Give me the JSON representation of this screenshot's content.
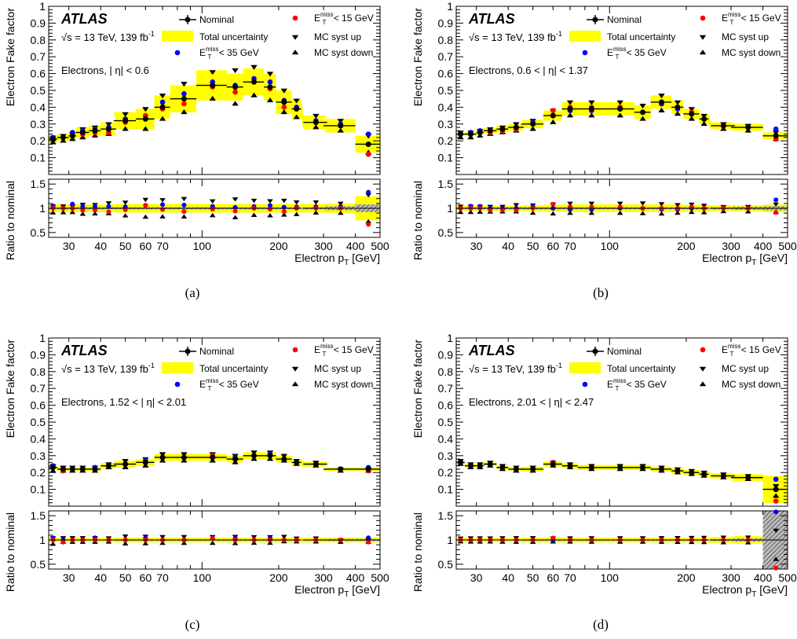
{
  "figure": {
    "captions": [
      "(a)",
      "(b)",
      "(c)",
      "(d)"
    ]
  },
  "common": {
    "experiment": "ATLAS",
    "energy_label": "√s = 13 TeV, 139 fb",
    "lumi_sup": "-1",
    "ylabel_top": "Electron Fake factor",
    "ylabel_bottom": "Ratio to nominal",
    "xlabel": "Electron p",
    "xlabel_sub": "T",
    "xlabel_unit": " [GeV]",
    "legend": [
      {
        "key": "nominal",
        "label": "Nominal"
      },
      {
        "key": "total_unc",
        "label": "Total uncertainty"
      },
      {
        "key": "met35",
        "label_main": "E",
        "label_sup": "miss",
        "label_sub": "T",
        "label_rest": " < 35 GeV"
      },
      {
        "key": "met15",
        "label_main": "E",
        "label_sup": "miss",
        "label_sub": "T",
        "label_rest": " < 15 GeV"
      },
      {
        "key": "syst_up",
        "label": "MC syst up"
      },
      {
        "key": "syst_down",
        "label": "MC syst down"
      }
    ],
    "colors": {
      "band": "#ffff00",
      "met15": "#ff0000",
      "met35": "#0000ff",
      "nominal": "#000000",
      "stat_hatch": "#555555"
    }
  },
  "chart_data": [
    {
      "type": "scatter",
      "panel": "(a)",
      "region": "Electrons, | η| < 0.6",
      "xscale": "log",
      "xlim": [
        25,
        500
      ],
      "ylim_top": [
        0,
        1
      ],
      "ylim_ratio": [
        0.4,
        1.6
      ],
      "xticks": [
        30,
        40,
        50,
        60,
        70,
        100,
        200,
        300,
        400,
        500
      ],
      "yticks_top": [
        0.1,
        0.2,
        0.3,
        0.4,
        0.5,
        0.6,
        0.7,
        0.8,
        0.9,
        1
      ],
      "yticks_ratio": [
        0.5,
        1,
        1.5
      ],
      "x": [
        26,
        28.5,
        31,
        34,
        38,
        43,
        50,
        60,
        70,
        85,
        110,
        135,
        160,
        185,
        210,
        235,
        280,
        350,
        450
      ],
      "xerr": [
        1,
        1.5,
        1,
        2,
        2,
        3,
        5,
        5,
        5,
        10,
        15,
        10,
        15,
        10,
        15,
        10,
        30,
        50,
        50
      ],
      "nominal": [
        0.21,
        0.22,
        0.23,
        0.25,
        0.26,
        0.27,
        0.32,
        0.33,
        0.4,
        0.45,
        0.53,
        0.52,
        0.55,
        0.52,
        0.43,
        0.39,
        0.31,
        0.29,
        0.18
      ],
      "band_halfwidth": [
        0.02,
        0.02,
        0.025,
        0.03,
        0.03,
        0.04,
        0.05,
        0.06,
        0.07,
        0.08,
        0.09,
        0.08,
        0.08,
        0.08,
        0.07,
        0.06,
        0.04,
        0.04,
        0.05
      ],
      "met15": [
        0.21,
        0.22,
        0.23,
        0.24,
        0.25,
        0.25,
        0.31,
        0.35,
        0.39,
        0.42,
        0.52,
        0.49,
        0.55,
        0.51,
        0.4,
        0.39,
        0.31,
        0.29,
        0.12
      ],
      "met35": [
        0.22,
        0.22,
        0.25,
        0.26,
        0.27,
        0.28,
        0.33,
        0.35,
        0.43,
        0.48,
        0.55,
        0.53,
        0.57,
        0.55,
        0.44,
        0.4,
        0.32,
        0.3,
        0.24
      ],
      "syst_up": [
        0.22,
        0.23,
        0.24,
        0.27,
        0.28,
        0.3,
        0.36,
        0.39,
        0.47,
        0.54,
        0.61,
        0.62,
        0.64,
        0.6,
        0.5,
        0.44,
        0.35,
        0.32,
        0.23
      ],
      "syst_down": [
        0.19,
        0.2,
        0.21,
        0.22,
        0.23,
        0.24,
        0.27,
        0.27,
        0.33,
        0.37,
        0.45,
        0.42,
        0.47,
        0.44,
        0.37,
        0.34,
        0.28,
        0.26,
        0.13
      ],
      "ratio_band_halfwidth": [
        0.08,
        0.08,
        0.08,
        0.08,
        0.08,
        0.08,
        0.09,
        0.09,
        0.09,
        0.09,
        0.09,
        0.09,
        0.09,
        0.09,
        0.09,
        0.09,
        0.09,
        0.1,
        0.25
      ],
      "ratio_hatch_halfwidth": [
        0.02,
        0.02,
        0.02,
        0.02,
        0.02,
        0.02,
        0.02,
        0.02,
        0.02,
        0.02,
        0.02,
        0.02,
        0.02,
        0.02,
        0.02,
        0.02,
        0.02,
        0.04,
        0.08
      ]
    },
    {
      "type": "scatter",
      "panel": "(b)",
      "region": "Electrons, 0.6 < | η| < 1.37",
      "xscale": "log",
      "xlim": [
        25,
        500
      ],
      "ylim_top": [
        0,
        1
      ],
      "ylim_ratio": [
        0.4,
        1.6
      ],
      "xticks": [
        30,
        40,
        50,
        60,
        70,
        100,
        200,
        300,
        400,
        500
      ],
      "yticks_top": [
        0.1,
        0.2,
        0.3,
        0.4,
        0.5,
        0.6,
        0.7,
        0.8,
        0.9,
        1
      ],
      "yticks_ratio": [
        0.5,
        1,
        1.5
      ],
      "x": [
        26,
        28.5,
        31,
        34,
        38,
        43,
        50,
        60,
        70,
        85,
        110,
        135,
        160,
        185,
        210,
        235,
        280,
        350,
        450
      ],
      "xerr": [
        1,
        1.5,
        1,
        2,
        2,
        3,
        5,
        5,
        5,
        10,
        15,
        10,
        15,
        10,
        15,
        10,
        30,
        50,
        50
      ],
      "nominal": [
        0.24,
        0.24,
        0.25,
        0.26,
        0.27,
        0.28,
        0.3,
        0.35,
        0.39,
        0.39,
        0.39,
        0.37,
        0.43,
        0.4,
        0.36,
        0.33,
        0.29,
        0.28,
        0.23
      ],
      "band_halfwidth": [
        0.01,
        0.01,
        0.015,
        0.015,
        0.02,
        0.02,
        0.025,
        0.03,
        0.04,
        0.04,
        0.04,
        0.04,
        0.04,
        0.04,
        0.03,
        0.03,
        0.02,
        0.02,
        0.02
      ],
      "met15": [
        0.24,
        0.24,
        0.25,
        0.25,
        0.26,
        0.27,
        0.3,
        0.38,
        0.4,
        0.4,
        0.4,
        0.37,
        0.43,
        0.4,
        0.37,
        0.33,
        0.29,
        0.28,
        0.21
      ],
      "met35": [
        0.24,
        0.25,
        0.26,
        0.26,
        0.27,
        0.28,
        0.31,
        0.35,
        0.38,
        0.38,
        0.39,
        0.37,
        0.42,
        0.39,
        0.36,
        0.33,
        0.29,
        0.28,
        0.27
      ],
      "syst_up": [
        0.25,
        0.25,
        0.26,
        0.27,
        0.28,
        0.3,
        0.32,
        0.38,
        0.43,
        0.43,
        0.43,
        0.41,
        0.47,
        0.43,
        0.39,
        0.35,
        0.3,
        0.29,
        0.25
      ],
      "syst_down": [
        0.22,
        0.22,
        0.23,
        0.24,
        0.25,
        0.26,
        0.27,
        0.31,
        0.35,
        0.35,
        0.35,
        0.33,
        0.38,
        0.36,
        0.33,
        0.3,
        0.27,
        0.26,
        0.21
      ],
      "ratio_band_halfwidth": [
        0.05,
        0.05,
        0.05,
        0.05,
        0.05,
        0.05,
        0.06,
        0.07,
        0.08,
        0.08,
        0.08,
        0.08,
        0.08,
        0.08,
        0.07,
        0.07,
        0.06,
        0.06,
        0.08
      ],
      "ratio_hatch_halfwidth": [
        0.02,
        0.02,
        0.02,
        0.02,
        0.02,
        0.02,
        0.02,
        0.02,
        0.02,
        0.02,
        0.02,
        0.02,
        0.02,
        0.02,
        0.02,
        0.02,
        0.02,
        0.03,
        0.04
      ]
    },
    {
      "type": "scatter",
      "panel": "(c)",
      "region": "Electrons, 1.52 < | η| < 2.01",
      "xscale": "log",
      "xlim": [
        25,
        500
      ],
      "ylim_top": [
        0,
        1
      ],
      "ylim_ratio": [
        0.4,
        1.6
      ],
      "xticks": [
        30,
        40,
        50,
        60,
        70,
        100,
        200,
        300,
        400,
        500
      ],
      "yticks_top": [
        0.1,
        0.2,
        0.3,
        0.4,
        0.5,
        0.6,
        0.7,
        0.8,
        0.9,
        1
      ],
      "yticks_ratio": [
        0.5,
        1,
        1.5
      ],
      "x": [
        26,
        28.5,
        31,
        34,
        38,
        43,
        50,
        60,
        70,
        85,
        110,
        135,
        160,
        185,
        210,
        235,
        280,
        350,
        450
      ],
      "xerr": [
        1,
        1.5,
        1,
        2,
        2,
        3,
        5,
        5,
        5,
        10,
        15,
        10,
        15,
        10,
        15,
        10,
        30,
        50,
        50
      ],
      "nominal": [
        0.23,
        0.22,
        0.22,
        0.22,
        0.22,
        0.24,
        0.25,
        0.26,
        0.29,
        0.29,
        0.29,
        0.28,
        0.3,
        0.3,
        0.28,
        0.26,
        0.25,
        0.22,
        0.22
      ],
      "band_halfwidth": [
        0.01,
        0.01,
        0.01,
        0.01,
        0.01,
        0.015,
        0.02,
        0.02,
        0.02,
        0.02,
        0.02,
        0.02,
        0.02,
        0.02,
        0.02,
        0.02,
        0.015,
        0.01,
        0.01
      ],
      "met15": [
        0.23,
        0.21,
        0.22,
        0.22,
        0.22,
        0.24,
        0.25,
        0.26,
        0.29,
        0.29,
        0.3,
        0.28,
        0.3,
        0.3,
        0.28,
        0.26,
        0.25,
        0.22,
        0.21
      ],
      "met35": [
        0.24,
        0.22,
        0.22,
        0.22,
        0.23,
        0.24,
        0.25,
        0.27,
        0.29,
        0.29,
        0.3,
        0.29,
        0.3,
        0.31,
        0.28,
        0.26,
        0.25,
        0.22,
        0.23
      ],
      "syst_up": [
        0.24,
        0.23,
        0.23,
        0.23,
        0.23,
        0.25,
        0.27,
        0.28,
        0.31,
        0.31,
        0.31,
        0.3,
        0.32,
        0.32,
        0.3,
        0.27,
        0.26,
        0.22,
        0.22
      ],
      "syst_down": [
        0.21,
        0.21,
        0.21,
        0.21,
        0.21,
        0.23,
        0.23,
        0.24,
        0.27,
        0.27,
        0.27,
        0.26,
        0.28,
        0.28,
        0.27,
        0.25,
        0.24,
        0.21,
        0.21
      ],
      "ratio_band_halfwidth": [
        0.04,
        0.04,
        0.04,
        0.04,
        0.04,
        0.04,
        0.05,
        0.05,
        0.05,
        0.05,
        0.05,
        0.05,
        0.05,
        0.05,
        0.05,
        0.05,
        0.05,
        0.05,
        0.05
      ],
      "ratio_hatch_halfwidth": [
        0.01,
        0.01,
        0.01,
        0.01,
        0.01,
        0.01,
        0.015,
        0.015,
        0.015,
        0.015,
        0.015,
        0.015,
        0.015,
        0.015,
        0.015,
        0.015,
        0.015,
        0.02,
        0.02
      ]
    },
    {
      "type": "scatter",
      "panel": "(d)",
      "region": "Electrons, 2.01 < | η| < 2.47",
      "xscale": "log",
      "xlim": [
        25,
        500
      ],
      "ylim_top": [
        0,
        1
      ],
      "ylim_ratio": [
        0.4,
        1.6
      ],
      "xticks": [
        30,
        40,
        50,
        60,
        70,
        100,
        200,
        300,
        400,
        500
      ],
      "yticks_top": [
        0.1,
        0.2,
        0.3,
        0.4,
        0.5,
        0.6,
        0.7,
        0.8,
        0.9,
        1
      ],
      "yticks_ratio": [
        0.5,
        1,
        1.5
      ],
      "x": [
        26,
        28.5,
        31,
        34,
        38,
        43,
        50,
        60,
        70,
        85,
        110,
        135,
        160,
        185,
        210,
        235,
        280,
        350,
        450
      ],
      "xerr": [
        1,
        1.5,
        1,
        2,
        2,
        3,
        5,
        5,
        5,
        10,
        15,
        10,
        15,
        10,
        15,
        10,
        30,
        50,
        50
      ],
      "nominal": [
        0.26,
        0.24,
        0.24,
        0.25,
        0.23,
        0.22,
        0.22,
        0.25,
        0.24,
        0.23,
        0.23,
        0.23,
        0.22,
        0.21,
        0.2,
        0.19,
        0.18,
        0.17,
        0.1
      ],
      "band_halfwidth": [
        0.01,
        0.01,
        0.01,
        0.01,
        0.01,
        0.01,
        0.015,
        0.015,
        0.015,
        0.015,
        0.015,
        0.015,
        0.015,
        0.015,
        0.015,
        0.015,
        0.015,
        0.02,
        0.08
      ],
      "met15": [
        0.26,
        0.24,
        0.24,
        0.25,
        0.23,
        0.22,
        0.22,
        0.26,
        0.24,
        0.23,
        0.23,
        0.23,
        0.22,
        0.21,
        0.2,
        0.19,
        0.18,
        0.17,
        0.03
      ],
      "met35": [
        0.26,
        0.24,
        0.24,
        0.25,
        0.23,
        0.22,
        0.22,
        0.25,
        0.24,
        0.23,
        0.23,
        0.23,
        0.22,
        0.21,
        0.2,
        0.19,
        0.18,
        0.17,
        0.16
      ],
      "syst_up": [
        0.27,
        0.25,
        0.25,
        0.26,
        0.24,
        0.23,
        0.23,
        0.26,
        0.25,
        0.24,
        0.24,
        0.24,
        0.23,
        0.22,
        0.21,
        0.2,
        0.19,
        0.18,
        0.12
      ],
      "syst_down": [
        0.25,
        0.23,
        0.23,
        0.24,
        0.22,
        0.21,
        0.21,
        0.24,
        0.23,
        0.22,
        0.22,
        0.22,
        0.21,
        0.2,
        0.19,
        0.18,
        0.17,
        0.16,
        0.06
      ],
      "ratio_band_halfwidth": [
        0.04,
        0.04,
        0.04,
        0.04,
        0.04,
        0.04,
        0.05,
        0.05,
        0.05,
        0.05,
        0.05,
        0.05,
        0.05,
        0.05,
        0.05,
        0.05,
        0.06,
        0.08,
        0.65
      ],
      "ratio_hatch_halfwidth": [
        0.01,
        0.01,
        0.01,
        0.01,
        0.01,
        0.01,
        0.015,
        0.015,
        0.015,
        0.015,
        0.015,
        0.015,
        0.015,
        0.015,
        0.015,
        0.015,
        0.02,
        0.03,
        0.6
      ]
    }
  ]
}
